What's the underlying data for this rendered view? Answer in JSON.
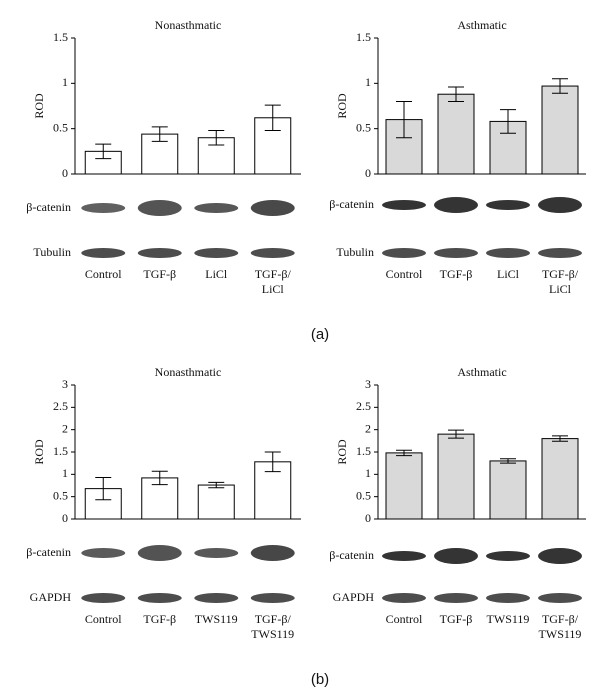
{
  "chart_data": [
    {
      "type": "bar",
      "title": "Nonasthmatic",
      "ylabel": "ROD",
      "color": "#ffffff",
      "categories": [
        "Control",
        "TGF-β",
        "LiCl",
        "TGF-β/\nLiCl"
      ],
      "values": [
        0.25,
        0.44,
        0.4,
        0.62
      ],
      "errors": [
        0.08,
        0.08,
        0.08,
        0.14
      ],
      "ylim": [
        0,
        1.5
      ],
      "yticks": [
        0,
        0.5,
        1,
        1.5
      ],
      "blot_rows": [
        "β-catenin",
        "Tubulin"
      ]
    },
    {
      "type": "bar",
      "title": "Asthmatic",
      "ylabel": "ROD",
      "color": "#d9d9d9",
      "categories": [
        "Control",
        "TGF-β",
        "LiCl",
        "TGF-β/\nLiCl"
      ],
      "values": [
        0.6,
        0.88,
        0.58,
        0.97
      ],
      "errors": [
        0.2,
        0.08,
        0.13,
        0.08
      ],
      "ylim": [
        0,
        1.5
      ],
      "yticks": [
        0,
        0.5,
        1,
        1.5
      ],
      "blot_rows": [
        "β-catenin",
        "Tubulin"
      ]
    },
    {
      "type": "bar",
      "title": "Nonasthmatic",
      "ylabel": "ROD",
      "color": "#ffffff",
      "categories": [
        "Control",
        "TGF-β",
        "TWS119",
        "TGF-β/\nTWS119"
      ],
      "values": [
        0.68,
        0.92,
        0.76,
        1.28
      ],
      "errors": [
        0.25,
        0.15,
        0.06,
        0.22
      ],
      "ylim": [
        0,
        3
      ],
      "yticks": [
        0,
        0.5,
        1,
        1.5,
        2,
        2.5,
        3
      ],
      "blot_rows": [
        "β-catenin",
        "GAPDH"
      ]
    },
    {
      "type": "bar",
      "title": "Asthmatic",
      "ylabel": "ROD",
      "color": "#d9d9d9",
      "categories": [
        "Control",
        "TGF-β",
        "TWS119",
        "TGF-β/\nTWS119"
      ],
      "values": [
        1.48,
        1.9,
        1.3,
        1.8
      ],
      "errors": [
        0.06,
        0.09,
        0.05,
        0.06
      ],
      "ylim": [
        0,
        3
      ],
      "yticks": [
        0,
        0.5,
        1,
        1.5,
        2,
        2.5,
        3
      ],
      "blot_rows": [
        "β-catenin",
        "GAPDH"
      ]
    }
  ],
  "panel_labels": [
    "(a)",
    "(b)"
  ]
}
